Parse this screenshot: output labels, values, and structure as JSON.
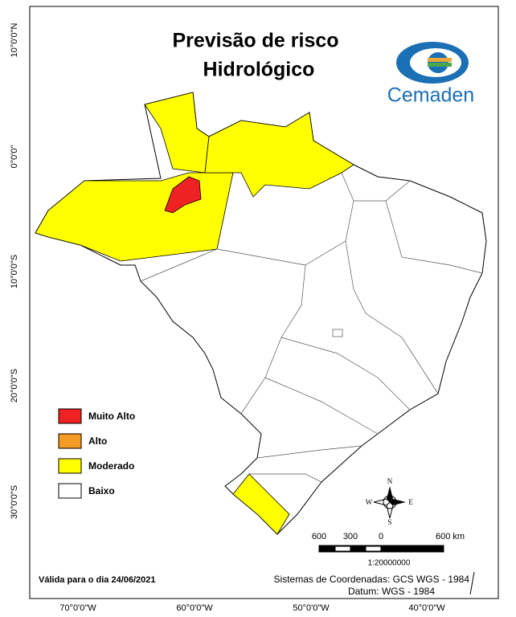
{
  "title": {
    "line1": "Previsão de risco",
    "line2": "Hidrológico"
  },
  "logo": {
    "text": "Cemaden"
  },
  "lat_labels": [
    "10°0'0\"N",
    "0°0'0\"",
    "10°0'0\"S",
    "20°0'0\"S",
    "30°0'0\"S"
  ],
  "lon_labels": [
    "70°0'0\"W",
    "60°0'0\"W",
    "50°0'0\"W",
    "40°0'0\"W"
  ],
  "legend": [
    {
      "label": "Muito Alto",
      "color": "#ee2222"
    },
    {
      "label": "Alto",
      "color": "#f59a23"
    },
    {
      "label": "Moderado",
      "color": "#ffff00"
    },
    {
      "label": "Baixo",
      "color": "#ffffff"
    }
  ],
  "compass": {
    "n": "N",
    "s": "S",
    "e": "E",
    "w": "W"
  },
  "scale": {
    "labels": [
      "600",
      "300",
      "0",
      "600 km"
    ],
    "ratio": "1:20000000"
  },
  "footer": {
    "validity": "Válida para o dia 24/06/2021",
    "crs": "Sistemas de Coordenadas: GCS WGS - 1984",
    "datum": "Datum: WGS - 1984"
  }
}
